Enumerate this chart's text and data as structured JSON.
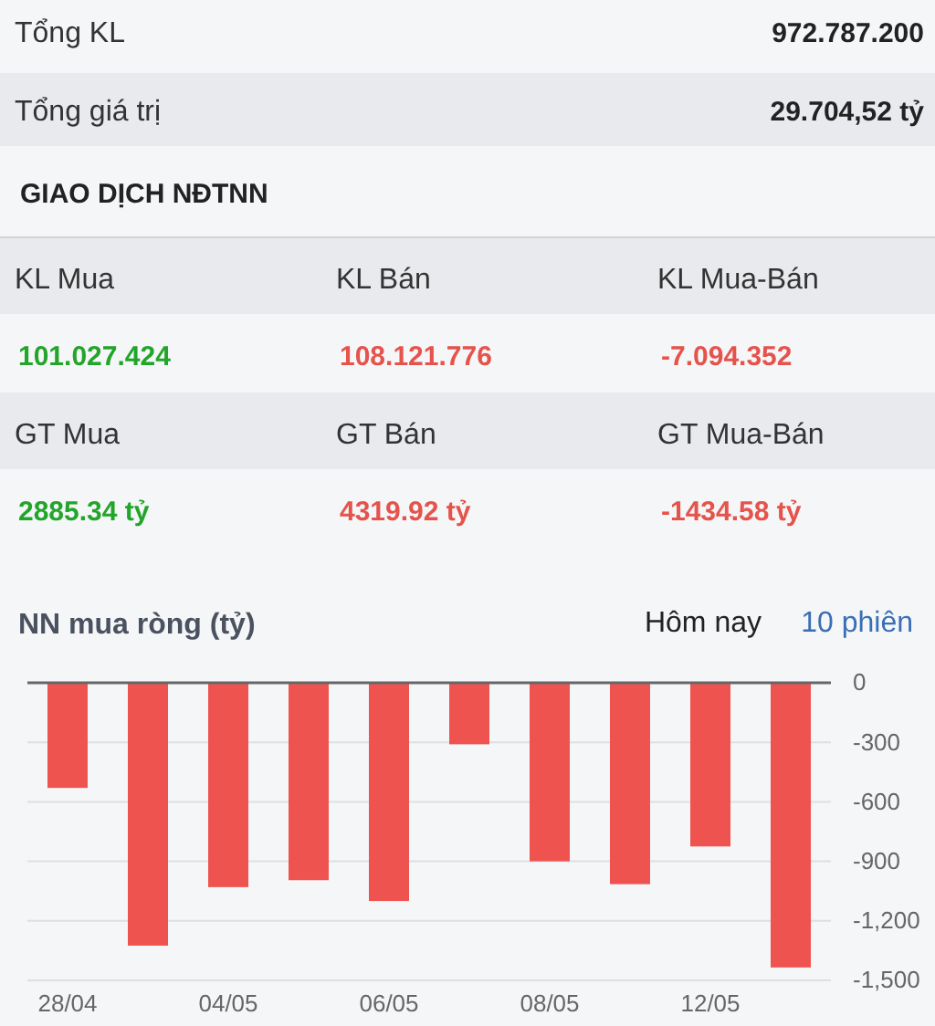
{
  "chart_data": [
    {
      "type": "other",
      "title": "GIAO DỊCH NĐTNN",
      "annotations": [
        "Tổng KL",
        "972.787.200",
        "Tổng giá trị",
        "29.704,52 tỷ",
        "KL Mua",
        "KL Bán",
        "KL Mua-Bán",
        "101.027.424",
        "108.121.776",
        "-7.094.352",
        "GT Mua",
        "GT Bán",
        "GT Mua-Bán",
        "2885.34 tỷ",
        "4319.92 tỷ",
        "-1434.58 tỷ"
      ]
    },
    {
      "type": "bar",
      "title": "NN mua ròng (tỷ)",
      "annotations": [
        "Hôm nay",
        "10 phiên"
      ],
      "categories": [
        "28/04",
        null,
        "04/05",
        null,
        "06/05",
        null,
        "08/05",
        null,
        "12/05",
        null
      ],
      "values": [
        -530,
        -1325,
        -1030,
        -995,
        -1100,
        -310,
        -900,
        -1015,
        -825,
        -1435
      ],
      "color": "#ef5350",
      "ylim": [
        -1500,
        0
      ],
      "yticks": [
        {
          "value": 0,
          "label": "0"
        },
        {
          "value": -300,
          "label": "-300"
        },
        {
          "value": -600,
          "label": "-600"
        },
        {
          "value": -900,
          "label": "-900"
        },
        {
          "value": -1200,
          "label": "-1,200"
        },
        {
          "value": -1500,
          "label": "-1,500"
        }
      ],
      "grid": "y"
    }
  ]
}
